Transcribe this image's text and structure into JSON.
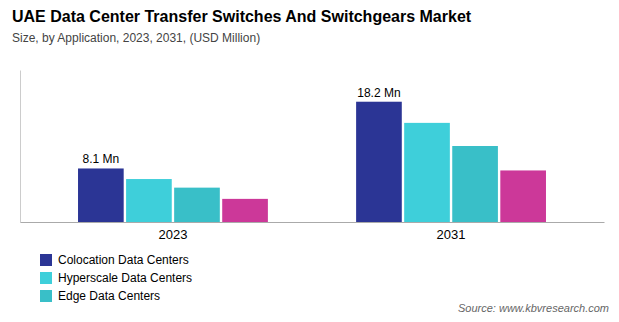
{
  "chart_data": {
    "type": "bar",
    "title": "UAE Data Center Transfer Switches And Switchgears Market",
    "subtitle": "Size, by Application, 2023, 2031, (USD Million)",
    "source": "Source: www.kbvresearch.com",
    "categories": [
      "2023",
      "2031"
    ],
    "series": [
      {
        "name": "Colocation Data Centers",
        "color": "#2b3595",
        "values": [
          8.1,
          18.2
        ]
      },
      {
        "name": "Hyperscale Data Centers",
        "color": "#3ecfda",
        "values": [
          6.5,
          15.0
        ]
      },
      {
        "name": "Edge Data Centers",
        "color": "#39bfc8",
        "values": [
          5.2,
          11.5
        ]
      },
      {
        "color": "#cc3899",
        "values": [
          3.5,
          7.8
        ]
      }
    ],
    "annotations": [
      {
        "text": "8.1 Mn",
        "x": "2023",
        "y": 8.1
      },
      {
        "text": "18.2 Mn",
        "x": "2031",
        "y": 18.2
      }
    ],
    "ylim": [
      0,
      23
    ],
    "tick_labels": "x",
    "grid": false,
    "legend": "lower left"
  }
}
